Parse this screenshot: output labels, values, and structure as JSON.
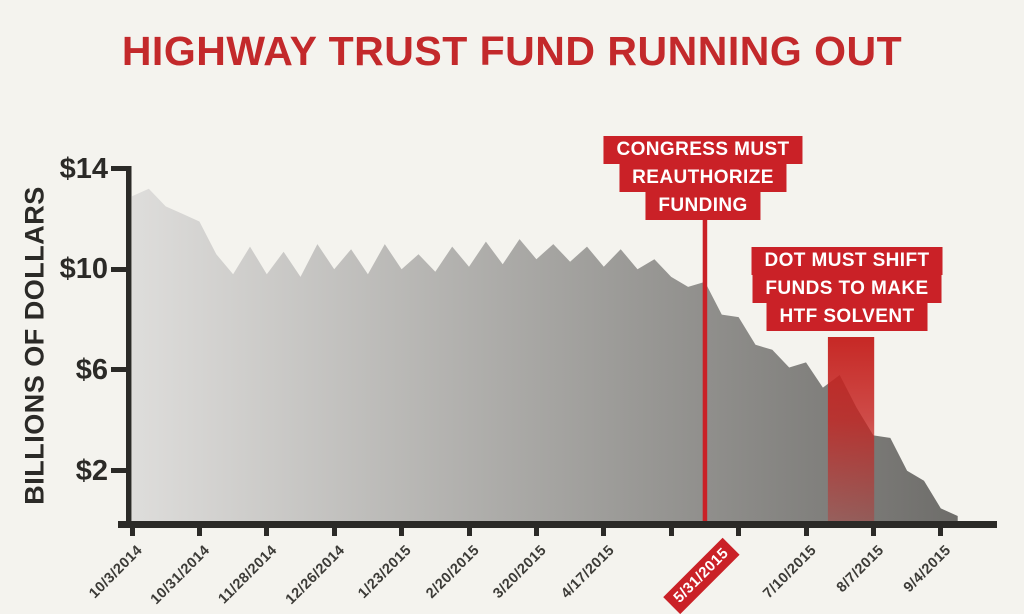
{
  "title": "HIGHWAY TRUST FUND RUNNING OUT",
  "colors": {
    "background": "#f4f3ee",
    "title_red": "#c3292b",
    "accent_red": "#ca2127",
    "axis_dark": "#2b2a27",
    "label_dark": "#3c3b37",
    "area_gradient": [
      "#dedddb",
      "#a6a5a2",
      "#6e6d6a"
    ]
  },
  "chart_data": {
    "type": "area",
    "title": "HIGHWAY TRUST FUND RUNNING OUT",
    "xlabel": "",
    "ylabel": "BILLIONS OF DOLLARS",
    "ylim": [
      0,
      14
    ],
    "grid": false,
    "legend": "none",
    "yticks": [
      {
        "label": "$14",
        "value": 14
      },
      {
        "label": "$10",
        "value": 10
      },
      {
        "label": "$6",
        "value": 6
      },
      {
        "label": "$2",
        "value": 2
      }
    ],
    "xticks": [
      {
        "week": 0,
        "label": "10/3/2014"
      },
      {
        "week": 4,
        "label": "10/31/2014"
      },
      {
        "week": 8,
        "label": "11/28/2014"
      },
      {
        "week": 12,
        "label": "12/26/2014"
      },
      {
        "week": 16,
        "label": "1/23/2015"
      },
      {
        "week": 20,
        "label": "2/20/2015"
      },
      {
        "week": 24,
        "label": "3/20/2015"
      },
      {
        "week": 28,
        "label": "4/17/2015"
      },
      {
        "week": 32,
        "label": null
      },
      {
        "week": 36,
        "label": null
      },
      {
        "week": 40,
        "label": "7/10/2015"
      },
      {
        "week": 44,
        "label": "8/7/2015"
      },
      {
        "week": 48,
        "label": "9/4/2015"
      }
    ],
    "deadline_tick": {
      "label": "5/31/2015",
      "week": 34,
      "highlight": true
    },
    "series": [
      {
        "name": "Highway Trust Fund balance",
        "unit": "billions of dollars",
        "x_unit": "weeks since 10/3/2014",
        "x_step_weeks": 1,
        "values": [
          12.9,
          13.2,
          12.5,
          12.2,
          11.9,
          10.6,
          9.8,
          10.9,
          9.8,
          10.7,
          9.7,
          11.0,
          10.0,
          10.8,
          9.8,
          11.0,
          10.0,
          10.6,
          9.9,
          10.9,
          10.1,
          11.1,
          10.2,
          11.2,
          10.4,
          11.0,
          10.3,
          10.9,
          10.1,
          10.8,
          10.0,
          10.4,
          9.7,
          9.3,
          9.5,
          8.2,
          8.1,
          7.0,
          6.8,
          6.1,
          6.3,
          5.3,
          5.8,
          4.5,
          3.4,
          3.3,
          2.0,
          1.6,
          0.5,
          0.2
        ]
      }
    ],
    "annotations": {
      "congress": {
        "lines": [
          "CONGRESS MUST",
          "REAUTHORIZE",
          "FUNDING"
        ],
        "date": "5/31/2015",
        "line_week": 34
      },
      "dot": {
        "lines": [
          "DOT MUST SHIFT",
          "FUNDS TO MAKE",
          "HTF SOLVENT"
        ],
        "band_week_start": 41.3,
        "band_week_end": 44.05
      }
    }
  }
}
